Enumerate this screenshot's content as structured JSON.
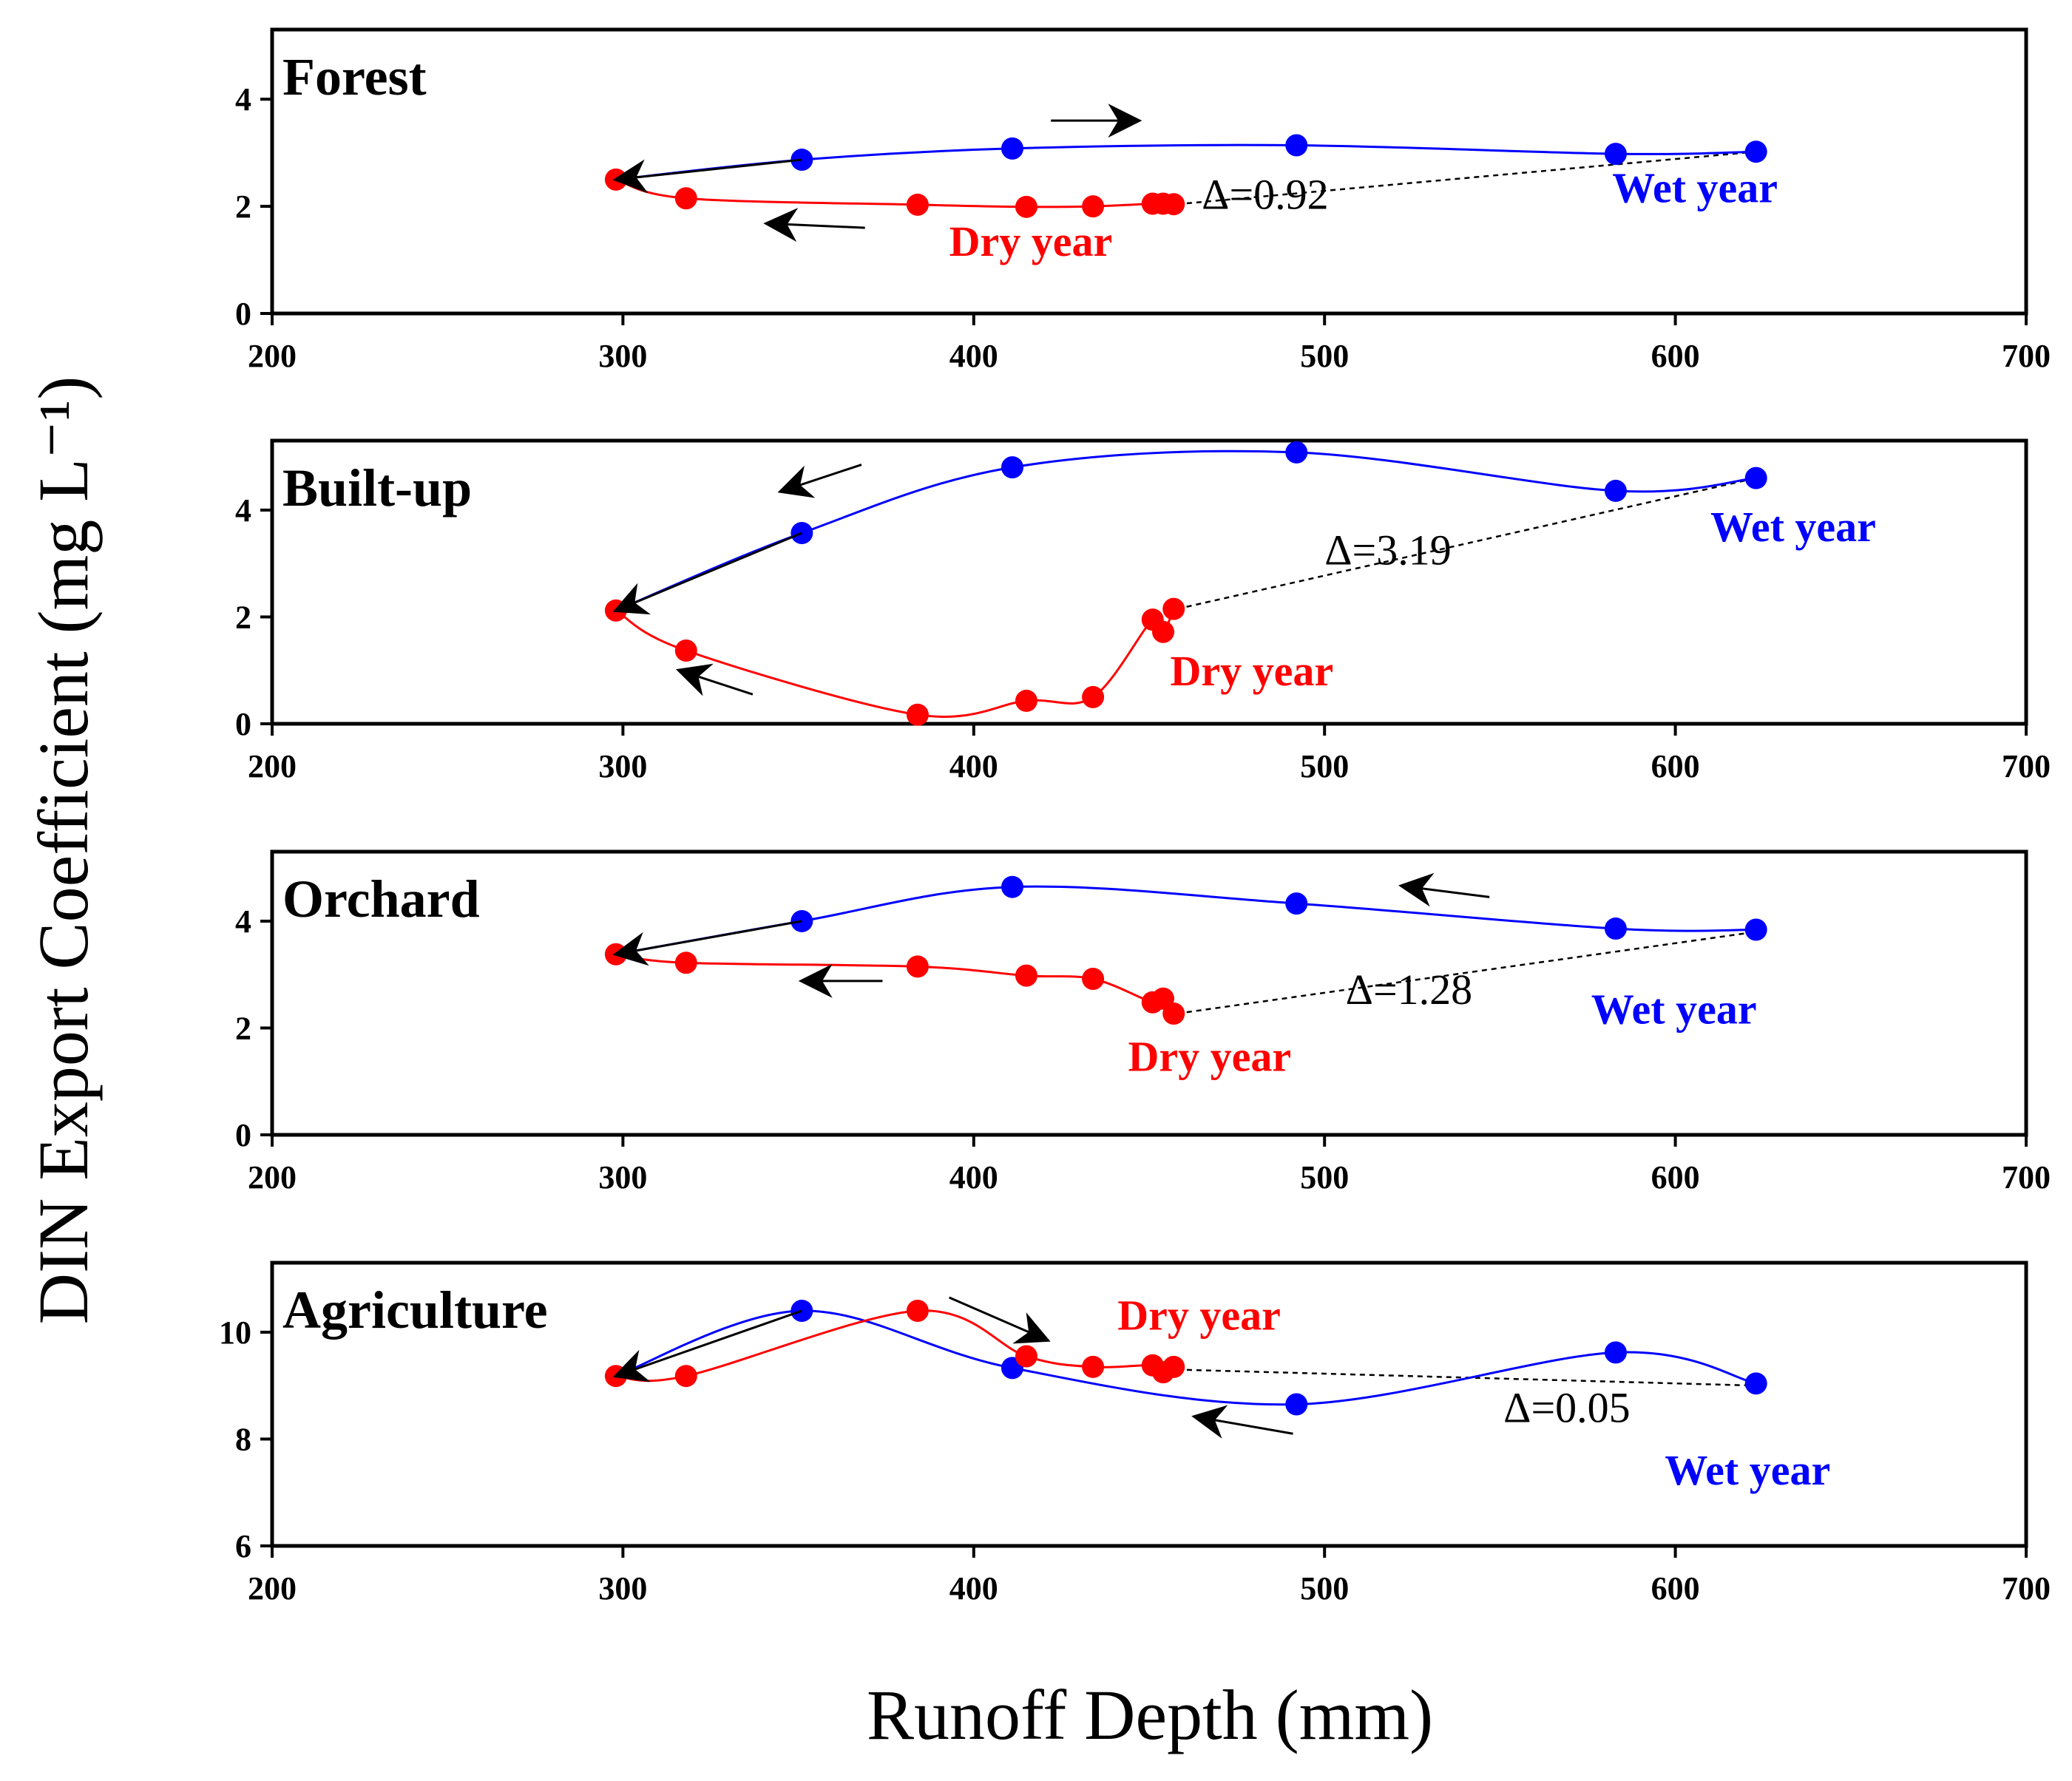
{
  "colors": {
    "wet": "#0000ff",
    "dry": "#ff0000",
    "axis": "#000000",
    "arrow": "#000000"
  },
  "chart_data": {
    "type": "line",
    "xlabel": "Runoff Depth (mm)",
    "ylabel": "DIN Export Coefficient (mg L⁻¹)",
    "xlim": [
      200,
      700
    ],
    "xticks": [
      200,
      300,
      400,
      500,
      600,
      700
    ],
    "panels": [
      {
        "title": "Forest",
        "ylim": [
          0,
          5.3
        ],
        "yticks": [
          0,
          2,
          4
        ],
        "series": [
          {
            "name": "Wet year",
            "x": [
              298,
              351,
              411,
              492,
              583,
              623
            ],
            "y": [
              2.5,
              2.87,
              3.08,
              3.14,
              2.98,
              3.02
            ],
            "marker_x": [
              351,
              411,
              492,
              583,
              623
            ],
            "marker_y": [
              2.87,
              3.08,
              3.14,
              2.98,
              3.02
            ]
          },
          {
            "name": "Dry year",
            "x": [
              298,
              318,
              384,
              415,
              434,
              451,
              454,
              457
            ],
            "y": [
              2.5,
              2.15,
              2.03,
              1.99,
              2.0,
              2.05,
              2.05,
              2.04
            ],
            "marker_x": [
              298,
              318,
              384,
              415,
              434,
              451,
              454,
              457
            ],
            "marker_y": [
              2.5,
              2.15,
              2.03,
              1.99,
              2.0,
              2.05,
              2.05,
              2.04
            ]
          }
        ],
        "delta": "Δ=0.92",
        "annotations": {
          "delta_pos": [
            465,
            1.95
          ],
          "wet_pos": [
            582,
            2.08
          ],
          "dry_pos": [
            393,
            1.08
          ],
          "dashed_from": [
            458,
            2.04
          ],
          "dashed_to": [
            623,
            3.02
          ],
          "arrows": [
            [
              351,
              2.87,
              298,
              2.5
            ],
            [
              369,
              1.6,
              341,
              1.68
            ],
            [
              422,
              3.6,
              447,
              3.6
            ]
          ]
        }
      },
      {
        "title": "Built-up",
        "ylim": [
          0,
          5.3
        ],
        "yticks": [
          0,
          2,
          4
        ],
        "series": [
          {
            "name": "Wet year",
            "x": [
              298,
              351,
              411,
              492,
              583,
              623
            ],
            "y": [
              2.12,
              3.57,
              4.8,
              5.08,
              4.36,
              4.6
            ],
            "marker_x": [
              351,
              411,
              492,
              583,
              623
            ],
            "marker_y": [
              3.57,
              4.8,
              5.08,
              4.36,
              4.6
            ]
          },
          {
            "name": "Dry year",
            "x": [
              298,
              318,
              384,
              415,
              434,
              451,
              454,
              457
            ],
            "y": [
              2.12,
              1.37,
              0.17,
              0.43,
              0.5,
              1.95,
              1.72,
              2.15
            ],
            "marker_x": [
              298,
              318,
              384,
              415,
              434,
              451,
              454,
              457
            ],
            "marker_y": [
              2.12,
              1.37,
              0.17,
              0.43,
              0.5,
              1.95,
              1.72,
              2.15
            ]
          }
        ],
        "delta": "Δ=3.19",
        "annotations": {
          "delta_pos": [
            500,
            2.98
          ],
          "wet_pos": [
            610,
            3.42
          ],
          "dry_pos": [
            456,
            0.72
          ],
          "dashed_from": [
            458,
            2.15
          ],
          "dashed_to": [
            623,
            4.6
          ],
          "arrows": [
            [
              351,
              3.57,
              298,
              2.12
            ],
            [
              337,
              0.55,
              316,
              1.0
            ],
            [
              368,
              4.85,
              345,
              4.35
            ]
          ]
        }
      },
      {
        "title": "Orchard",
        "ylim": [
          0,
          5.3
        ],
        "yticks": [
          0,
          2,
          4
        ],
        "series": [
          {
            "name": "Wet year",
            "x": [
              298,
              351,
              411,
              492,
              583,
              623
            ],
            "y": [
              3.38,
              4.0,
              4.64,
              4.33,
              3.86,
              3.84
            ],
            "marker_x": [
              351,
              411,
              492,
              583,
              623
            ],
            "marker_y": [
              4.0,
              4.64,
              4.33,
              3.86,
              3.84
            ]
          },
          {
            "name": "Dry year",
            "x": [
              298,
              318,
              384,
              415,
              434,
              451,
              454,
              457
            ],
            "y": [
              3.38,
              3.22,
              3.15,
              2.98,
              2.92,
              2.48,
              2.55,
              2.27
            ],
            "marker_x": [
              298,
              318,
              384,
              415,
              434,
              451,
              454,
              457
            ],
            "marker_y": [
              3.38,
              3.22,
              3.15,
              2.98,
              2.92,
              2.48,
              2.55,
              2.27
            ]
          }
        ],
        "delta": "Δ=1.28",
        "annotations": {
          "delta_pos": [
            506,
            2.45
          ],
          "wet_pos": [
            576,
            2.08
          ],
          "dry_pos": [
            444,
            1.2
          ],
          "dashed_from": [
            458,
            2.27
          ],
          "dashed_to": [
            623,
            3.8
          ],
          "arrows": [
            [
              351,
              4.0,
              298,
              3.38
            ],
            [
              374,
              2.88,
              351,
              2.88
            ],
            [
              547,
              4.45,
              522,
              4.66
            ]
          ]
        }
      },
      {
        "title": "Agriculture",
        "ylim": [
          6,
          11.3
        ],
        "yticks": [
          6,
          8,
          10
        ],
        "series": [
          {
            "name": "Wet year",
            "x": [
              298,
              351,
              411,
              492,
              583,
              623
            ],
            "y": [
              9.18,
              10.4,
              9.33,
              8.65,
              9.62,
              9.04
            ],
            "marker_x": [
              351,
              411,
              492,
              583,
              623
            ],
            "marker_y": [
              10.4,
              9.33,
              8.65,
              9.62,
              9.04
            ]
          },
          {
            "name": "Dry year",
            "x": [
              298,
              318,
              384,
              415,
              434,
              451,
              454,
              457
            ],
            "y": [
              9.18,
              9.18,
              10.4,
              9.55,
              9.35,
              9.38,
              9.25,
              9.35
            ],
            "marker_x": [
              298,
              318,
              384,
              415,
              434,
              451,
              454,
              457
            ],
            "marker_y": [
              9.18,
              9.18,
              10.4,
              9.55,
              9.35,
              9.38,
              9.25,
              9.35
            ]
          }
        ],
        "delta": "Δ=0.05",
        "annotations": {
          "delta_pos": [
            551,
            8.32
          ],
          "wet_pos": [
            597,
            7.15
          ],
          "dry_pos": [
            441,
            10.05
          ],
          "dashed_from": [
            458,
            9.3
          ],
          "dashed_to": [
            623,
            9.0
          ],
          "arrows": [
            [
              351,
              10.4,
              298,
              9.18
            ],
            [
              393,
              10.65,
              421,
              9.85
            ],
            [
              491,
              8.1,
              463,
              8.42
            ]
          ]
        }
      }
    ]
  }
}
